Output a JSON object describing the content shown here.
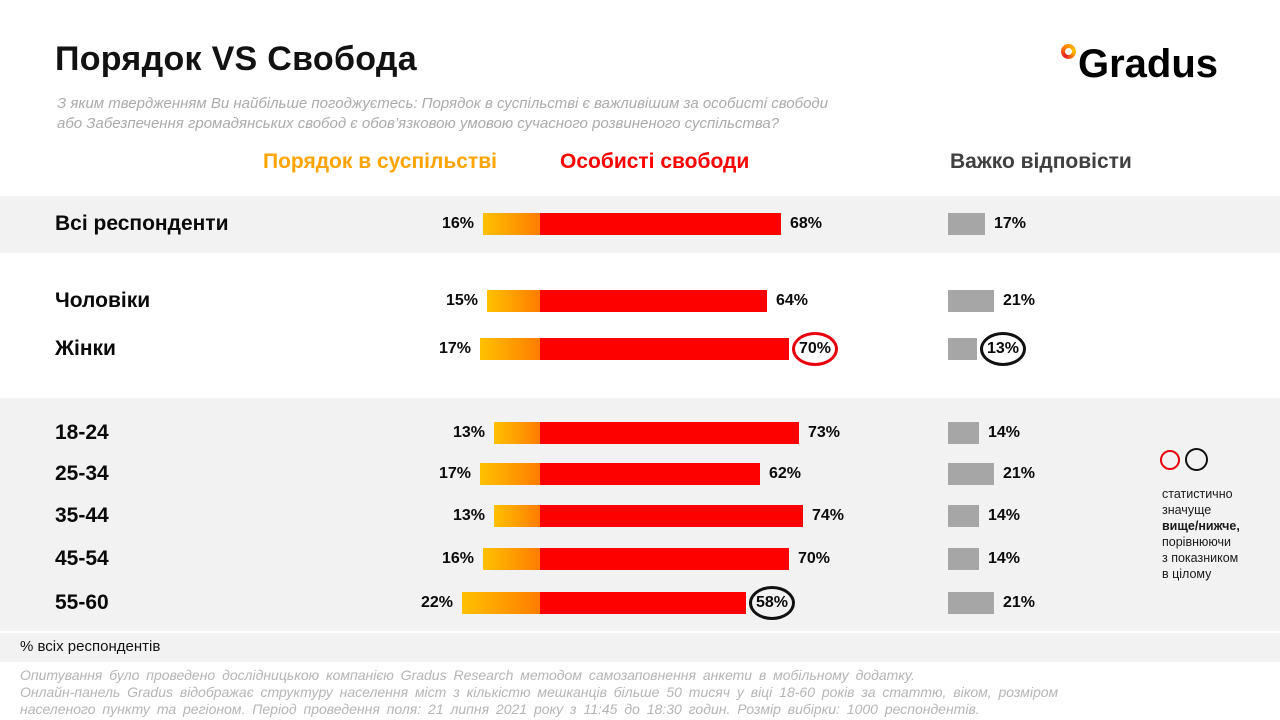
{
  "header": {
    "title": "Порядок VS Свобода",
    "subtitle_line1": "З яким твердженням Ви найбільше погоджуєтесь: Порядок в суспільстві є важливішим за особисті свободи",
    "subtitle_line2": "або Забезпечення громадянських свобод є обов’язковою умовою сучасного розвиненого суспільства?",
    "logo_text": "Gradus"
  },
  "legend": {
    "order": "Порядок в суспільстві",
    "freedom": "Особисті свободи",
    "hard": "Важко відповісти"
  },
  "chart_data": {
    "type": "bar",
    "title": "Порядок VS Свобода",
    "unit": "%",
    "categories": [
      "Всі респонденти",
      "Чоловіки",
      "Жінки",
      "18-24",
      "25-34",
      "35-44",
      "45-54",
      "55-60"
    ],
    "series": [
      {
        "name": "Порядок в суспільстві",
        "color": "#FFA400",
        "values": [
          16,
          15,
          17,
          13,
          17,
          13,
          16,
          22
        ]
      },
      {
        "name": "Особисті свободи",
        "color": "#FD0000",
        "values": [
          68,
          64,
          70,
          73,
          62,
          74,
          70,
          58
        ]
      },
      {
        "name": "Важко відповісти",
        "color": "#A6A6A6",
        "values": [
          17,
          21,
          13,
          14,
          21,
          14,
          14,
          21
        ]
      }
    ],
    "annotations": [
      {
        "category": "Жінки",
        "series": "Особисті свободи",
        "circle_color": "red"
      },
      {
        "category": "Жінки",
        "series": "Важко відповісти",
        "circle_color": "black"
      },
      {
        "category": "55-60",
        "series": "Особисті свободи",
        "circle_color": "black"
      }
    ],
    "legend_position": "top",
    "grid": false,
    "xlim": [
      0,
      100
    ]
  },
  "stat_legend": {
    "line1": "статистично",
    "line2": "значуще",
    "line3": "вище/нижче,",
    "line4": "порівнюючи",
    "line5": "з показником",
    "line6": "в цілому"
  },
  "bottom_note": "% всіх респондентів",
  "footer": {
    "line1": "Опитування було проведено дослідницькою компанією Gradus Research методом самозаповнення анкети в мобільному додатку.",
    "line2": "Онлайн-панель Gradus відображає структуру населення міст з кількістю мешканців більше 50 тисяч у віці 18-60 років за статтю, віком, розміром",
    "line3": "населеного пункту та регіоном. Період проведення поля: 21 липня 2021 року з 11:45 до 18:30 годин. Розмір вибірки: 1000 респондентів."
  }
}
